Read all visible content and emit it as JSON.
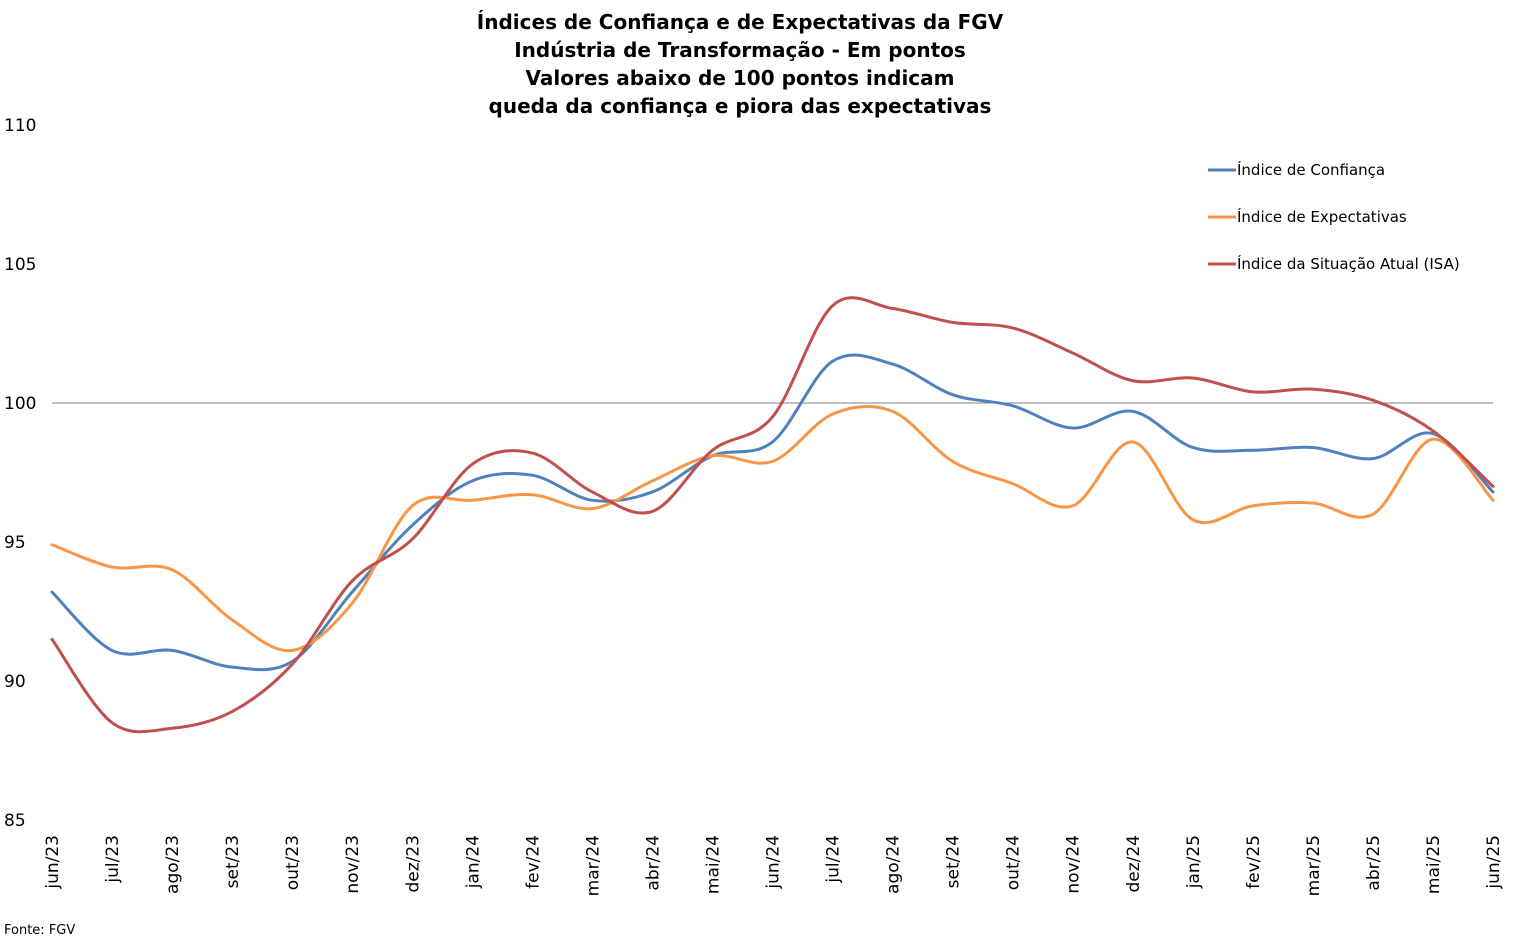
{
  "chart_data": {
    "type": "line",
    "title": [
      "Índices de Confiança e de Expectativas da FGV",
      "Indústria de Transformação - Em pontos",
      "Valores abaixo de 100 pontos indicam",
      "queda da confiança e piora das expectativas"
    ],
    "xlabel": "",
    "ylabel": "",
    "ylim": [
      85,
      110
    ],
    "yticks": [
      85,
      90,
      95,
      100,
      105,
      110
    ],
    "reference_line": 100,
    "grid": false,
    "legend_position": "top-right",
    "categories": [
      "jun/23",
      "jul/23",
      "ago/23",
      "set/23",
      "out/23",
      "nov/23",
      "dez/23",
      "jan/24",
      "fev/24",
      "mar/24",
      "abr/24",
      "mai/24",
      "jun/24",
      "jul/24",
      "ago/24",
      "set/24",
      "out/24",
      "nov/24",
      "dez/24",
      "jan/25",
      "fev/25",
      "mar/25",
      "abr/25",
      "mai/25",
      "jun/25"
    ],
    "series": [
      {
        "name": "Índice de Confiança",
        "color": "#4F81BD",
        "values": [
          93.2,
          91.1,
          91.1,
          90.5,
          90.7,
          93.2,
          95.6,
          97.2,
          97.4,
          96.5,
          96.8,
          98.1,
          98.6,
          101.5,
          101.4,
          100.3,
          99.9,
          99.1,
          99.7,
          98.4,
          98.3,
          98.4,
          98.0,
          98.9,
          96.8
        ]
      },
      {
        "name": "Índice de Expectativas",
        "color": "#F79646",
        "values": [
          94.9,
          94.1,
          94.0,
          92.2,
          91.1,
          92.8,
          96.3,
          96.5,
          96.7,
          96.2,
          97.2,
          98.1,
          97.9,
          99.6,
          99.7,
          97.9,
          97.1,
          96.3,
          98.6,
          95.8,
          96.3,
          96.4,
          96.0,
          98.7,
          96.5
        ]
      },
      {
        "name": "Índice da Situação Atual (ISA)",
        "color": "#C0504D",
        "values": [
          91.5,
          88.5,
          88.3,
          88.9,
          90.6,
          93.6,
          95.1,
          97.8,
          98.2,
          96.8,
          96.1,
          98.3,
          99.5,
          103.5,
          103.4,
          102.9,
          102.7,
          101.8,
          100.8,
          100.9,
          100.4,
          100.5,
          100.1,
          99.0,
          97.0
        ]
      }
    ],
    "source": "Fonte: FGV"
  }
}
